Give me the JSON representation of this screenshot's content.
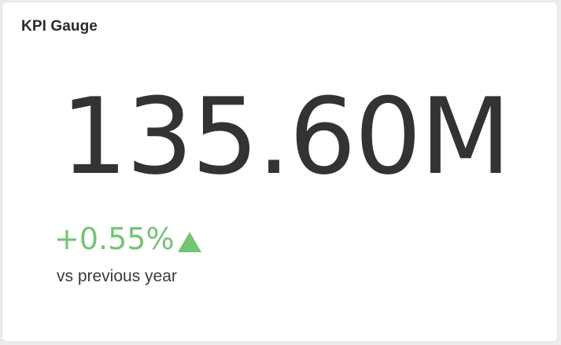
{
  "widget": {
    "title": "KPI Gauge",
    "value": "135.60M",
    "delta": "+0.55%",
    "delta_direction": "up",
    "delta_icon": "triangle-up-icon",
    "comparison_label": "vs previous year"
  },
  "colors": {
    "background": "#ececec",
    "card": "#ffffff",
    "text": "#333333",
    "positive": "#74c476"
  }
}
